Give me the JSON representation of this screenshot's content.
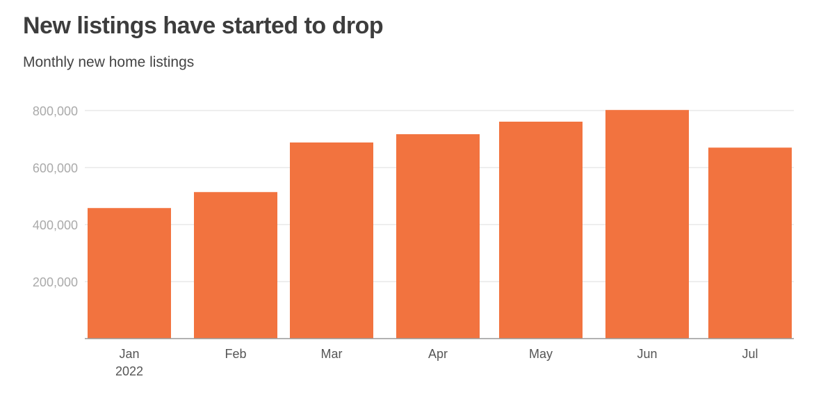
{
  "title": "New listings have started to drop",
  "subtitle": "Monthly new home listings",
  "colors": {
    "bar": "#f2733f",
    "grid": "#dddddd",
    "axis": "#999999"
  },
  "chart_data": {
    "type": "bar",
    "title": "New listings have started to drop",
    "subtitle": "Monthly new home listings",
    "categories": [
      "Jan",
      "Feb",
      "Mar",
      "Apr",
      "May",
      "Jun",
      "Jul"
    ],
    "year_label": "2022",
    "values": [
      458000,
      514000,
      688000,
      717000,
      761000,
      802000,
      670000
    ],
    "ylim": [
      0,
      800000
    ],
    "yticks": [
      200000,
      400000,
      600000,
      800000
    ],
    "ytick_labels": [
      "200,000",
      "400,000",
      "600,000",
      "800,000"
    ],
    "grid": true,
    "legend": "none"
  }
}
